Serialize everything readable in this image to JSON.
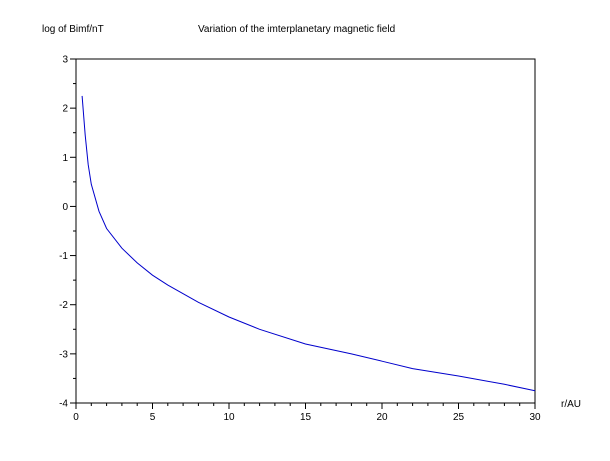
{
  "chart_data": {
    "type": "line",
    "title": "Variation of the imterplanetary magnetic field",
    "xlabel": "r/AU",
    "ylabel": "log of Bimf/nT",
    "xlim": [
      0,
      30
    ],
    "ylim": [
      -4,
      3
    ],
    "x_ticks": [
      "0",
      "5",
      "10",
      "15",
      "20",
      "25",
      "30"
    ],
    "y_ticks": [
      "3",
      "2",
      "1",
      "0",
      "-1",
      "-2",
      "-3",
      "-4"
    ],
    "grid": false,
    "series": [
      {
        "color": "#0000cc",
        "x": [
          0.4,
          0.6,
          0.8,
          1,
          1.5,
          2,
          3,
          4,
          5,
          6,
          8,
          10,
          12,
          15,
          18,
          20,
          22,
          25,
          28,
          30
        ],
        "y": [
          2.25,
          1.45,
          0.85,
          0.45,
          -0.1,
          -0.45,
          -0.85,
          -1.15,
          -1.4,
          -1.6,
          -1.95,
          -2.25,
          -2.5,
          -2.8,
          -3.0,
          -3.15,
          -3.3,
          -3.45,
          -3.62,
          -3.75
        ]
      }
    ]
  }
}
